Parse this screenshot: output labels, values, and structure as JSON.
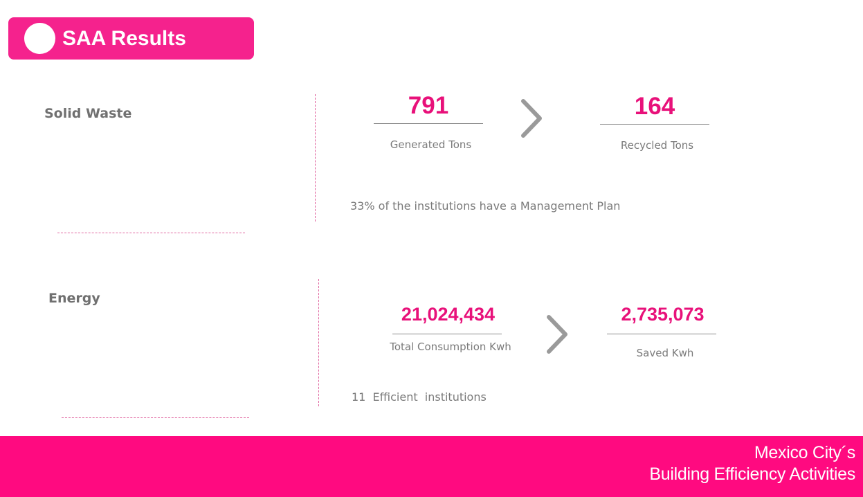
{
  "header": {
    "title": "SAA Results"
  },
  "solid_waste": {
    "label": "Solid Waste",
    "generated_value": "791",
    "generated_label": "Generated Tons",
    "recycled_value": "164",
    "recycled_label": "Recycled Tons",
    "note": "33% of the institutions have a Management Plan"
  },
  "energy": {
    "label": "Energy",
    "consumption_value": "21,024,434",
    "consumption_label": "Total Consumption Kwh",
    "saved_value": "2,735,073",
    "saved_label": "Saved Kwh",
    "note": "11  Efficient  institutions"
  },
  "footer": {
    "line1": "Mexico City´s",
    "line2": "Building Efficiency Activities"
  },
  "colors": {
    "accent": "#f5228d",
    "footer": "#ff0a80",
    "number": "#e8117a"
  }
}
